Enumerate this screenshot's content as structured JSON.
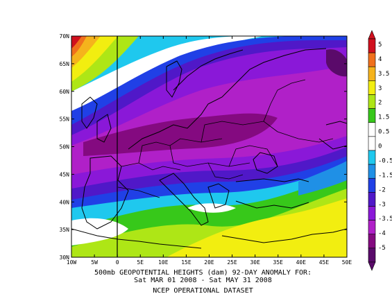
{
  "map": {
    "lat_labels": [
      "70N",
      "65N",
      "60N",
      "55N",
      "50N",
      "45N",
      "40N",
      "35N",
      "30N"
    ],
    "lon_labels": [
      "10W",
      "5W",
      "0",
      "5E",
      "10E",
      "15E",
      "20E",
      "25E",
      "30E",
      "35E",
      "40E",
      "45E",
      "50E"
    ]
  },
  "caption": {
    "line1": "500mb GEOPOTENTIAL HEIGHTS (dam)  92-DAY ANOMALY FOR:",
    "line2": "Sat MAR 01 2008 - Sat MAY 31 2008",
    "line3": "NCEP OPERATIONAL DATASET"
  },
  "colorbar": {
    "levels": [
      "5",
      "4",
      "3.5",
      "3",
      "2",
      "1.5",
      "0.5",
      "0",
      "-0.5",
      "-1.5",
      "-2",
      "-3",
      "-3.5",
      "-4",
      "-5"
    ],
    "colors": [
      "#d0101e",
      "#f0701c",
      "#f5b31c",
      "#f2ee10",
      "#aee616",
      "#37c81a",
      "#ffffff",
      "#ffffff",
      "#1fc8ee",
      "#1f90e6",
      "#2040e6",
      "#5018c8",
      "#8a18d8",
      "#b020c8",
      "#840a80",
      "#5a0a6a"
    ]
  }
}
